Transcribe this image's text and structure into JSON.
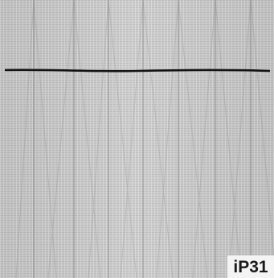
{
  "image": {
    "type": "grayscale fabric/mesh texture photograph",
    "dominant_color": "#c9c9c9",
    "line_color": "#101010"
  },
  "label": {
    "text": "iP31"
  }
}
